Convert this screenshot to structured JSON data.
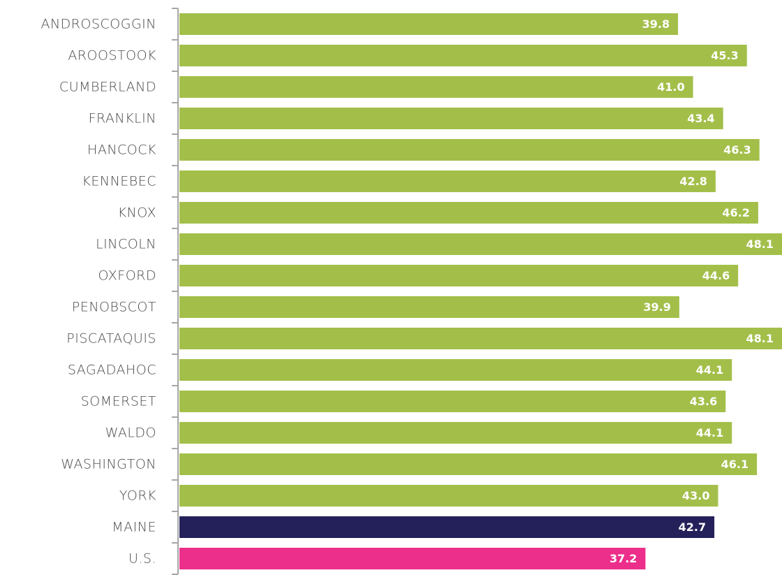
{
  "chart_data": {
    "type": "bar",
    "categories": [
      "ANDROSCOGGIN",
      "AROOSTOOK",
      "CUMBERLAND",
      "FRANKLIN",
      "HANCOCK",
      "KENNEBEC",
      "KNOX",
      "LINCOLN",
      "OXFORD",
      "PENOBSCOT",
      "PISCATAQUIS",
      "SAGADAHOC",
      "SOMERSET",
      "WALDO",
      "WASHINGTON",
      "YORK",
      "MAINE",
      "U.S."
    ],
    "values": [
      39.8,
      45.3,
      41.0,
      43.4,
      46.3,
      42.8,
      46.2,
      48.1,
      44.6,
      39.9,
      48.1,
      44.1,
      43.6,
      44.1,
      46.1,
      43.0,
      42.7,
      37.2
    ],
    "value_labels": [
      "39.8",
      "45.3",
      "41.0",
      "43.4",
      "46.3",
      "42.8",
      "46.2",
      "48.1",
      "44.6",
      "39.9",
      "48.1",
      "44.1",
      "43.6",
      "44.1",
      "46.1",
      "43.0",
      "42.7",
      "37.2"
    ],
    "colors": [
      "#a3bf4a",
      "#a3bf4a",
      "#a3bf4a",
      "#a3bf4a",
      "#a3bf4a",
      "#a3bf4a",
      "#a3bf4a",
      "#a3bf4a",
      "#a3bf4a",
      "#a3bf4a",
      "#a3bf4a",
      "#a3bf4a",
      "#a3bf4a",
      "#a3bf4a",
      "#a3bf4a",
      "#a3bf4a",
      "#24215a",
      "#ec2f8b"
    ]
  }
}
